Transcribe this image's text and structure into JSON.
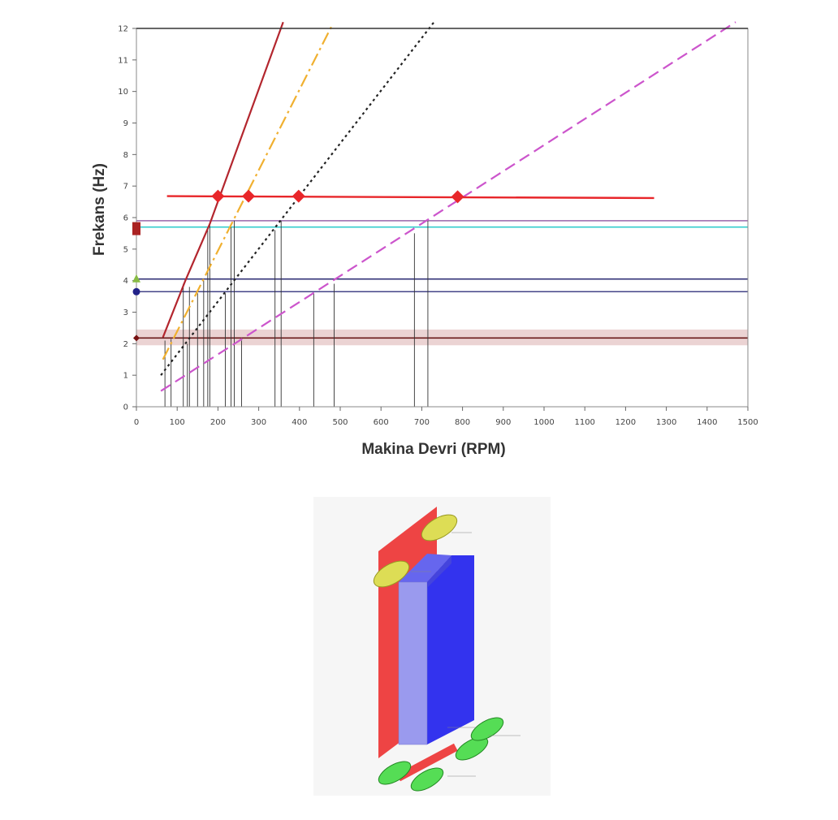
{
  "chart_data": {
    "type": "line",
    "xlabel": "Makina Devri (RPM)",
    "ylabel": "Frekans (Hz)",
    "xlim": [
      0,
      1500
    ],
    "ylim": [
      0,
      12
    ],
    "x_ticks": [
      "0",
      "100",
      "200",
      "300",
      "400",
      "500",
      "600",
      "700",
      "800",
      "900",
      "1000",
      "1100",
      "1200",
      "1300",
      "1400",
      "1500"
    ],
    "y_ticks": [
      "0",
      "1",
      "2",
      "3",
      "4",
      "5",
      "6",
      "7",
      "8",
      "9",
      "10",
      "11",
      "12"
    ],
    "grid": false,
    "colors": {
      "red": "#e8262a",
      "darkred": "#b3262e",
      "orange": "#f0b030",
      "black": "#222222",
      "magenta": "#cc55cc",
      "cyan": "#33cccc",
      "navy": "#333377",
      "purple": "#9966aa"
    },
    "excitation_lines": [
      {
        "style": "solid",
        "color": "#b3262e",
        "points": [
          [
            65,
            2.2
          ],
          [
            120,
            4.0
          ],
          [
            180,
            5.8
          ],
          [
            360,
            12.2
          ]
        ]
      },
      {
        "style": "dashdot",
        "color": "#f0b030",
        "points": [
          [
            65,
            1.5
          ],
          [
            480,
            12.1
          ]
        ]
      },
      {
        "style": "dotted",
        "color": "#222222",
        "points": [
          [
            60,
            1.0
          ],
          [
            730,
            12.2
          ]
        ]
      },
      {
        "style": "dashed",
        "color": "#cc55cc",
        "points": [
          [
            60,
            0.5
          ],
          [
            1470,
            12.2
          ]
        ]
      }
    ],
    "operating_line": {
      "y_start": 6.68,
      "y_end": 6.62,
      "x_start": 75,
      "x_end": 1270,
      "color": "#e8262a"
    },
    "operating_markers": [
      {
        "x": 200,
        "y": 6.68
      },
      {
        "x": 275,
        "y": 6.68
      },
      {
        "x": 398,
        "y": 6.68
      },
      {
        "x": 788,
        "y": 6.66
      }
    ],
    "natural_frequencies": [
      {
        "y": 5.9,
        "color": "#9966aa"
      },
      {
        "y": 5.7,
        "color": "#33cccc"
      },
      {
        "y": 4.05,
        "color": "#333377"
      },
      {
        "y": 3.65,
        "color": "#444488"
      },
      {
        "y": 2.18,
        "color": "#6a1a1a"
      }
    ],
    "band": {
      "y_low": 1.95,
      "y_high": 2.45,
      "color": "#e6c8c8"
    },
    "axis_markers": [
      {
        "y": 5.65,
        "shape": "square",
        "color": "#aa2222"
      },
      {
        "y": 4.05,
        "shape": "triangle",
        "color": "#88bb44"
      },
      {
        "y": 3.65,
        "shape": "circle",
        "color": "#222288"
      },
      {
        "y": 2.18,
        "shape": "diamond",
        "color": "#771111"
      }
    ],
    "intersection_drops": [
      {
        "x": 70,
        "y": 2.1
      },
      {
        "x": 85,
        "y": 2.15
      },
      {
        "x": 115,
        "y": 3.9
      },
      {
        "x": 125,
        "y": 2.0
      },
      {
        "x": 130,
        "y": 3.8
      },
      {
        "x": 150,
        "y": 3.6
      },
      {
        "x": 165,
        "y": 4.0
      },
      {
        "x": 175,
        "y": 5.6
      },
      {
        "x": 180,
        "y": 5.8
      },
      {
        "x": 218,
        "y": 3.6
      },
      {
        "x": 232,
        "y": 5.7
      },
      {
        "x": 240,
        "y": 5.9
      },
      {
        "x": 258,
        "y": 2.1
      },
      {
        "x": 340,
        "y": 5.6
      },
      {
        "x": 355,
        "y": 5.9
      },
      {
        "x": 435,
        "y": 3.6
      },
      {
        "x": 485,
        "y": 3.9
      },
      {
        "x": 682,
        "y": 5.5
      },
      {
        "x": 715,
        "y": 5.9
      }
    ]
  }
}
